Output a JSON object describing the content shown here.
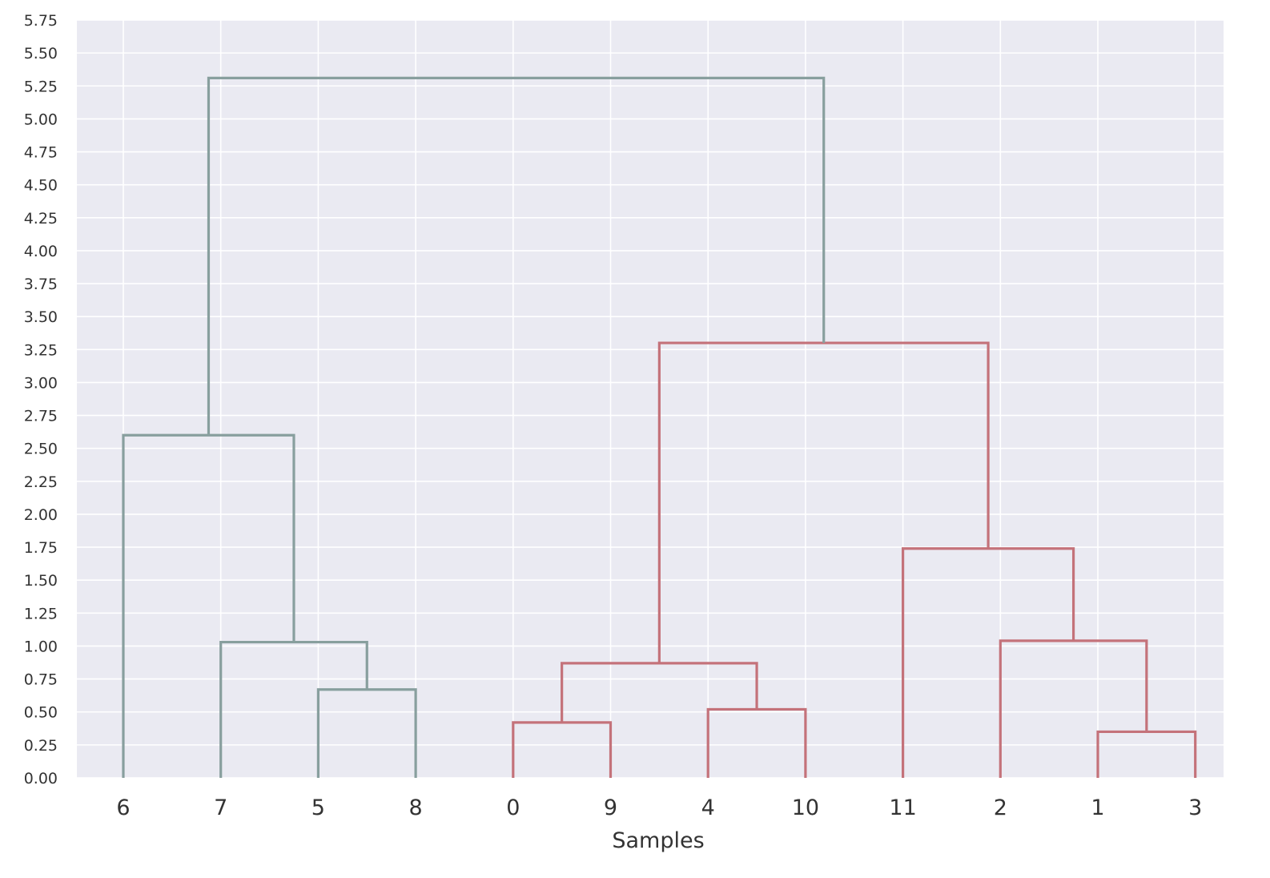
{
  "chart_data": {
    "type": "dendrogram",
    "title": "",
    "xlabel": "Samples",
    "ylabel": "",
    "ylim": [
      0,
      5.75
    ],
    "ytick_step": 0.25,
    "grid": true,
    "leaves": [
      "6",
      "7",
      "5",
      "8",
      "0",
      "9",
      "4",
      "10",
      "11",
      "2",
      "1",
      "3"
    ],
    "colors": {
      "background": "#eaeaf2",
      "grid": "#ffffff",
      "cluster_gray": "#889f9e",
      "cluster_red": "#c4727a",
      "tick_text": "#333333"
    },
    "merges": [
      {
        "left": "5",
        "right": "8",
        "height": 0.67,
        "color": "cluster_gray"
      },
      {
        "left": "7",
        "right": "5+8",
        "height": 1.03,
        "color": "cluster_gray"
      },
      {
        "left": "6",
        "right": "7+5+8",
        "height": 2.6,
        "color": "cluster_gray"
      },
      {
        "left": "0",
        "right": "9",
        "height": 0.42,
        "color": "cluster_red"
      },
      {
        "left": "4",
        "right": "10",
        "height": 0.52,
        "color": "cluster_red"
      },
      {
        "left": "0+9",
        "right": "4+10",
        "height": 0.87,
        "color": "cluster_red"
      },
      {
        "left": "1",
        "right": "3",
        "height": 0.35,
        "color": "cluster_red"
      },
      {
        "left": "2",
        "right": "1+3",
        "height": 1.04,
        "color": "cluster_red"
      },
      {
        "left": "11",
        "right": "2+1+3",
        "height": 1.74,
        "color": "cluster_red"
      },
      {
        "left": "0+9+4+10",
        "right": "11+2+1+3",
        "height": 3.3,
        "color": "cluster_red"
      },
      {
        "left": "6+7+5+8",
        "right": "0+9+4+10+11+2+1+3",
        "height": 5.31,
        "color": "cluster_gray"
      }
    ]
  }
}
